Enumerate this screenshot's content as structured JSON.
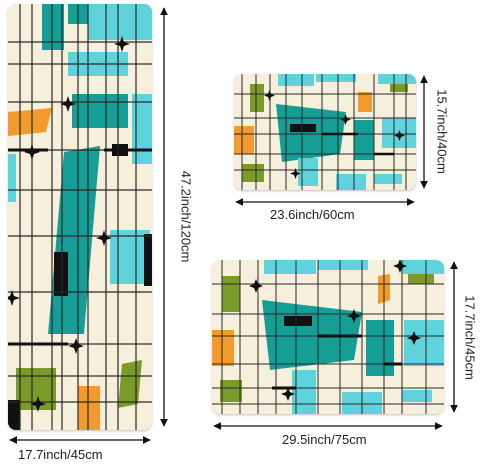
{
  "colors": {
    "background": "#f5efdc",
    "teal": "#159e96",
    "aqua": "#5ed3dc",
    "olive": "#7a9a2a",
    "orange": "#f29a2e",
    "black": "#111111",
    "line": "#2a2a2a"
  },
  "mats": [
    {
      "name": "runner-mat",
      "width_label": "17.7inch/45cm",
      "height_label": "47.2inch/120cm"
    },
    {
      "name": "small-mat",
      "width_label": "23.6inch/60cm",
      "height_label": "15.7inch/40cm"
    },
    {
      "name": "medium-mat",
      "width_label": "29.5inch/75cm",
      "height_label": "17.7inch/45cm"
    }
  ]
}
